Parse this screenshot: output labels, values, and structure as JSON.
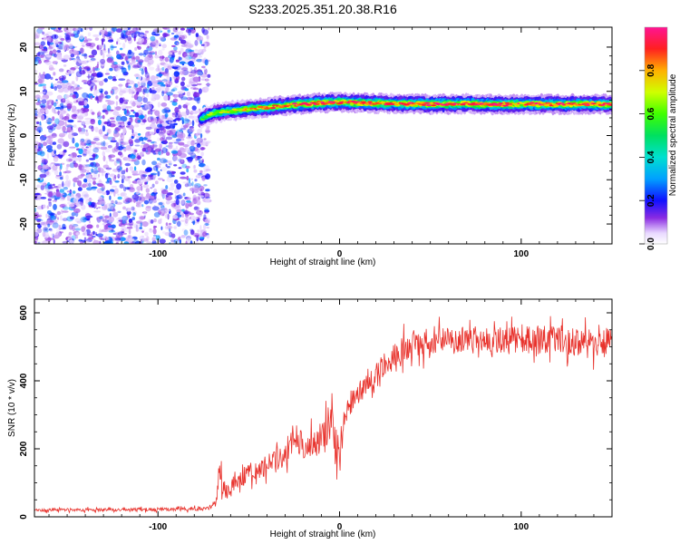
{
  "title": "S233.2025.351.20.38.R16",
  "chart_data": [
    {
      "type": "heatmap",
      "xlabel": "Height of straight line (km)",
      "ylabel": "Frequency (Hz)",
      "xlim": [
        -168,
        150
      ],
      "ylim": [
        -24.5,
        24.5
      ],
      "xticks": [
        -100,
        0,
        100
      ],
      "yticks": [
        -20,
        -10,
        0,
        10,
        20
      ],
      "grid": false,
      "noise_region": {
        "x": [
          -168,
          -72
        ],
        "y": [
          -24.5,
          24.5
        ],
        "amplitude": [
          0.05,
          0.3
        ]
      },
      "ridge": {
        "x": [
          -76,
          -70,
          -60,
          -50,
          -40,
          -30,
          -20,
          -10,
          0,
          10,
          20,
          30,
          40,
          50,
          60,
          70,
          80,
          90,
          100,
          110,
          120,
          130,
          140,
          150
        ],
        "frequency": [
          3.8,
          5.0,
          5.6,
          6.0,
          6.3,
          6.8,
          7.1,
          7.4,
          7.5,
          7.4,
          7.3,
          7.2,
          7.1,
          7.1,
          7.1,
          7.2,
          7.1,
          7.0,
          7.1,
          7.1,
          7.0,
          7.1,
          7.1,
          7.1
        ],
        "amplitude": [
          0.55,
          0.65,
          0.7,
          0.75,
          0.8,
          0.85,
          0.9,
          0.9,
          0.85,
          0.9,
          0.9,
          0.85,
          0.9,
          0.9,
          0.9,
          0.88,
          0.9,
          0.9,
          0.85,
          0.9,
          0.9,
          0.88,
          0.9,
          0.9
        ]
      },
      "colorbar": {
        "label": "Normalized spectral amplitude",
        "range": [
          0,
          1
        ],
        "ticks": [
          0.0,
          0.2,
          0.4,
          0.6,
          0.8
        ]
      }
    },
    {
      "type": "line",
      "xlabel": "Height of straight line (km)",
      "ylabel": "SNR (10 * v/v)",
      "xlim": [
        -168,
        150
      ],
      "ylim": [
        0,
        640
      ],
      "xticks": [
        -100,
        0,
        100
      ],
      "yticks": [
        0,
        200,
        400,
        600
      ],
      "grid": false,
      "series": [
        {
          "color": "#e8322c",
          "x": [
            -168,
            -150,
            -130,
            -110,
            -90,
            -72,
            -68,
            -66,
            -64,
            -62,
            -58,
            -50,
            -40,
            -30,
            -25,
            -20,
            -10,
            -5,
            -2,
            0,
            2,
            5,
            10,
            20,
            30,
            40,
            60,
            80,
            100,
            120,
            140,
            150
          ],
          "y": [
            20,
            20,
            21,
            22,
            22,
            25,
            45,
            150,
            80,
            70,
            100,
            130,
            150,
            180,
            260,
            200,
            230,
            280,
            220,
            160,
            300,
            330,
            360,
            420,
            480,
            510,
            520,
            520,
            520,
            520,
            510,
            520
          ],
          "noise_amplitude": [
            6,
            6,
            6,
            6,
            6,
            8,
            20,
            50,
            40,
            35,
            35,
            35,
            40,
            50,
            60,
            50,
            55,
            65,
            70,
            60,
            60,
            45,
            40,
            40,
            45,
            50,
            45,
            45,
            50,
            55,
            55,
            50
          ]
        }
      ]
    }
  ]
}
